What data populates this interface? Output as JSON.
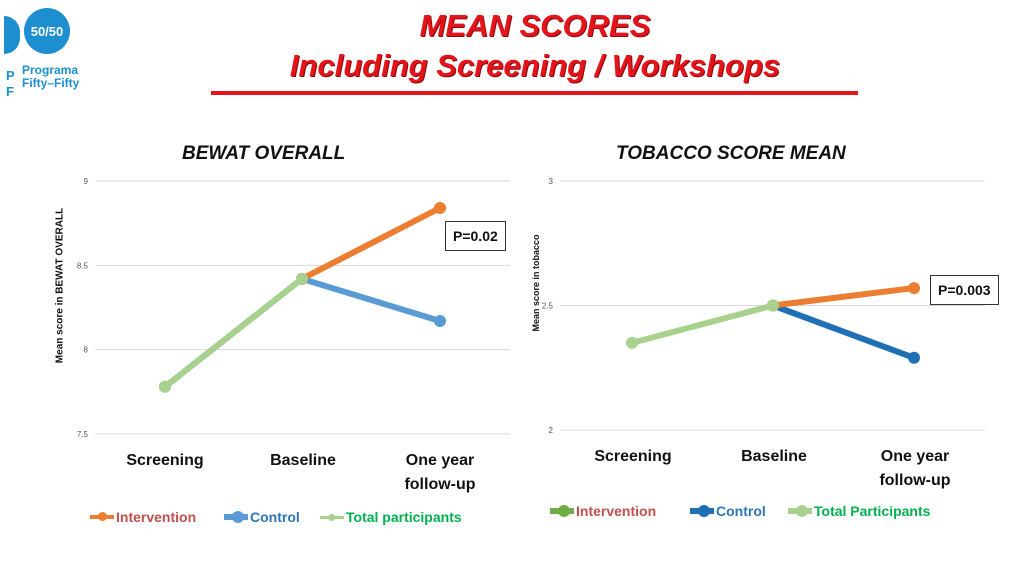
{
  "header": {
    "title_line1": "MEAN SCORES",
    "title_line2": "Including Screening / Workshops"
  },
  "logo": {
    "badge_text": "50/50",
    "brand_text": "Programa\nFifty–Fifty",
    "edge_text": "P\nF"
  },
  "colors": {
    "intervention": "#ed7d31",
    "control_left": "#5b9bd5",
    "control_right": "#1f6fb5",
    "total": "#a9d18e",
    "title_red": "#e4141a",
    "grid": "#d9d9d9"
  },
  "chart_data": [
    {
      "type": "line",
      "title": "BEWAT OVERALL",
      "ylabel": "Mean score in BEWAT OVERALL",
      "categories": [
        "Screening",
        "Baseline",
        "One year follow-up"
      ],
      "ylim": [
        7.5,
        9
      ],
      "yticks": [
        7.5,
        8,
        8.5,
        9
      ],
      "series": [
        {
          "name": "Intervention",
          "values": [
            null,
            8.42,
            8.84
          ]
        },
        {
          "name": "Control",
          "values": [
            7.78,
            8.42,
            8.17
          ]
        },
        {
          "name": "Total participants",
          "values": [
            7.78,
            8.42,
            null
          ]
        }
      ],
      "annotation": "P=0.02",
      "legend": "bottom"
    },
    {
      "type": "line",
      "title": "TOBACCO SCORE MEAN",
      "ylabel": "Mean score in tobacco",
      "categories": [
        "Screening",
        "Baseline",
        "One year follow-up"
      ],
      "ylim": [
        2,
        3
      ],
      "yticks": [
        2,
        2.5,
        3
      ],
      "series": [
        {
          "name": "Intervention",
          "values": [
            null,
            2.5,
            2.57
          ]
        },
        {
          "name": "Control",
          "values": [
            null,
            2.5,
            2.29
          ]
        },
        {
          "name": "Total Participants",
          "values": [
            2.35,
            2.5,
            null
          ]
        }
      ],
      "annotation": "P=0.003",
      "legend": "bottom"
    }
  ]
}
